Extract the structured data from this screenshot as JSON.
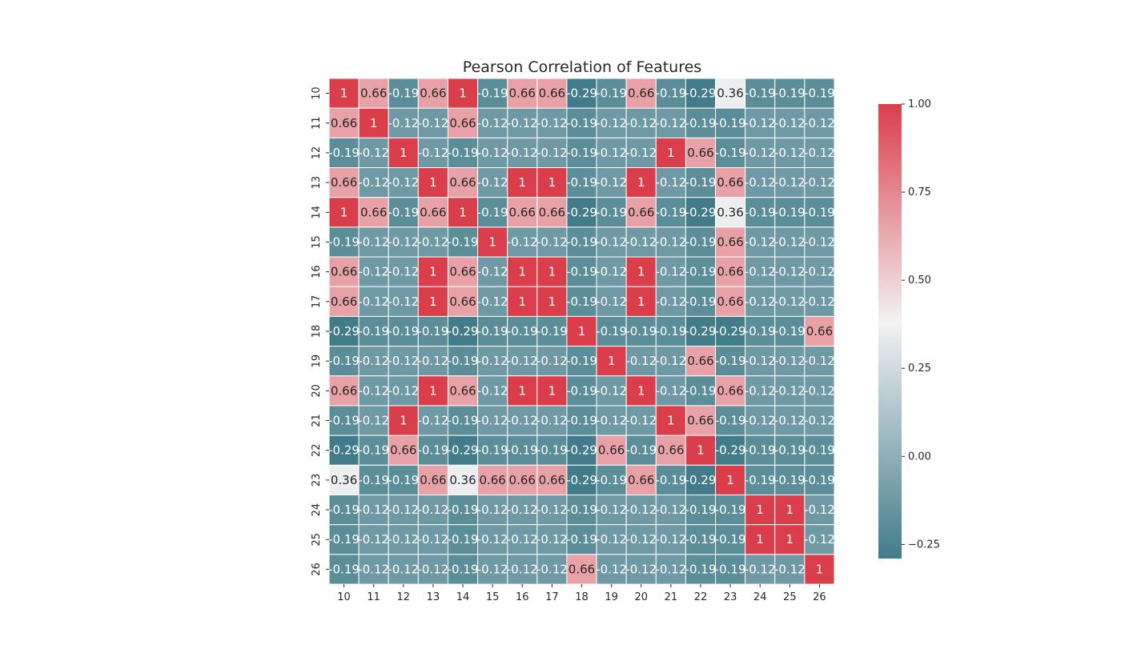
{
  "chart_data": {
    "type": "heatmap",
    "title": "Pearson Correlation of Features",
    "labels": [
      "10",
      "11",
      "12",
      "13",
      "14",
      "15",
      "16",
      "17",
      "18",
      "19",
      "20",
      "21",
      "22",
      "23",
      "24",
      "25",
      "26"
    ],
    "matrix": [
      [
        1,
        0.66,
        -0.19,
        0.66,
        1,
        -0.19,
        0.66,
        0.66,
        -0.29,
        -0.19,
        0.66,
        -0.19,
        -0.29,
        0.36,
        -0.19,
        -0.19,
        -0.19
      ],
      [
        0.66,
        1,
        -0.12,
        -0.12,
        0.66,
        -0.12,
        -0.12,
        -0.12,
        -0.19,
        -0.12,
        -0.12,
        -0.12,
        -0.19,
        -0.19,
        -0.12,
        -0.12,
        -0.12
      ],
      [
        -0.19,
        -0.12,
        1,
        -0.12,
        -0.19,
        -0.12,
        -0.12,
        -0.12,
        -0.19,
        -0.12,
        -0.12,
        1,
        0.66,
        -0.19,
        -0.12,
        -0.12,
        -0.12
      ],
      [
        0.66,
        -0.12,
        -0.12,
        1,
        0.66,
        -0.12,
        1,
        1,
        -0.19,
        -0.12,
        1,
        -0.12,
        -0.19,
        0.66,
        -0.12,
        -0.12,
        -0.12
      ],
      [
        1,
        0.66,
        -0.19,
        0.66,
        1,
        -0.19,
        0.66,
        0.66,
        -0.29,
        -0.19,
        0.66,
        -0.19,
        -0.29,
        0.36,
        -0.19,
        -0.19,
        -0.19
      ],
      [
        -0.19,
        -0.12,
        -0.12,
        -0.12,
        -0.19,
        1,
        -0.12,
        -0.12,
        -0.19,
        -0.12,
        -0.12,
        -0.12,
        -0.19,
        0.66,
        -0.12,
        -0.12,
        -0.12
      ],
      [
        0.66,
        -0.12,
        -0.12,
        1,
        0.66,
        -0.12,
        1,
        1,
        -0.19,
        -0.12,
        1,
        -0.12,
        -0.19,
        0.66,
        -0.12,
        -0.12,
        -0.12
      ],
      [
        0.66,
        -0.12,
        -0.12,
        1,
        0.66,
        -0.12,
        1,
        1,
        -0.19,
        -0.12,
        1,
        -0.12,
        -0.19,
        0.66,
        -0.12,
        -0.12,
        -0.12
      ],
      [
        -0.29,
        -0.19,
        -0.19,
        -0.19,
        -0.29,
        -0.19,
        -0.19,
        -0.19,
        1,
        -0.19,
        -0.19,
        -0.19,
        -0.29,
        -0.29,
        -0.19,
        -0.19,
        0.66
      ],
      [
        -0.19,
        -0.12,
        -0.12,
        -0.12,
        -0.19,
        -0.12,
        -0.12,
        -0.12,
        -0.19,
        1,
        -0.12,
        -0.12,
        0.66,
        -0.19,
        -0.12,
        -0.12,
        -0.12
      ],
      [
        0.66,
        -0.12,
        -0.12,
        1,
        0.66,
        -0.12,
        1,
        1,
        -0.19,
        -0.12,
        1,
        -0.12,
        -0.19,
        0.66,
        -0.12,
        -0.12,
        -0.12
      ],
      [
        -0.19,
        -0.12,
        1,
        -0.12,
        -0.19,
        -0.12,
        -0.12,
        -0.12,
        -0.19,
        -0.12,
        -0.12,
        1,
        0.66,
        -0.19,
        -0.12,
        -0.12,
        -0.12
      ],
      [
        -0.29,
        -0.19,
        0.66,
        -0.19,
        -0.29,
        -0.19,
        -0.19,
        -0.19,
        -0.29,
        0.66,
        -0.19,
        0.66,
        1,
        -0.29,
        -0.19,
        -0.19,
        -0.19
      ],
      [
        0.36,
        -0.19,
        -0.19,
        0.66,
        0.36,
        0.66,
        0.66,
        0.66,
        -0.29,
        -0.19,
        0.66,
        -0.19,
        -0.29,
        1,
        -0.19,
        -0.19,
        -0.19
      ],
      [
        -0.19,
        -0.12,
        -0.12,
        -0.12,
        -0.19,
        -0.12,
        -0.12,
        -0.12,
        -0.19,
        -0.12,
        -0.12,
        -0.12,
        -0.19,
        -0.19,
        1,
        1,
        -0.12
      ],
      [
        -0.19,
        -0.12,
        -0.12,
        -0.12,
        -0.19,
        -0.12,
        -0.12,
        -0.12,
        -0.19,
        -0.12,
        -0.12,
        -0.12,
        -0.19,
        -0.19,
        1,
        1,
        -0.12
      ],
      [
        -0.19,
        -0.12,
        -0.12,
        -0.12,
        -0.19,
        -0.12,
        -0.12,
        -0.12,
        0.66,
        -0.12,
        -0.12,
        -0.12,
        -0.19,
        -0.19,
        -0.12,
        -0.12,
        1
      ]
    ],
    "vmin": -0.29,
    "vmax": 1,
    "colorbar": {
      "ticks": [
        -0.25,
        0,
        0.25,
        0.5,
        0.75,
        1
      ],
      "tick_labels": [
        "−0.25",
        "0.00",
        "0.25",
        "0.50",
        "0.75",
        "1.00"
      ]
    },
    "colors": {
      "low": "#427c8b",
      "mid": "#f2f2f2",
      "high": "#db3e4b"
    },
    "annot": true,
    "grid_lines": "white",
    "legend": "colorbar-right"
  }
}
